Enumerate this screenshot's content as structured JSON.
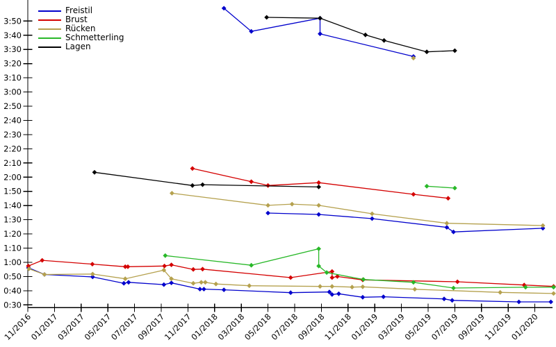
{
  "chart_data": {
    "type": "line",
    "title": "",
    "xlabel": "",
    "ylabel": "",
    "x_unit": "months since 11/2016 (fractional = day within month)",
    "y_unit": "time in seconds (displayed as m:ss)",
    "x_axis": {
      "tick_step_months": 2,
      "ticks": [
        "11/2016",
        "01/2017",
        "03/2017",
        "05/2017",
        "07/2017",
        "09/2017",
        "11/2017",
        "01/2018",
        "03/2018",
        "05/2018",
        "07/2018",
        "09/2018",
        "11/2018",
        "01/2019",
        "03/2019",
        "05/2019",
        "07/2019",
        "09/2019",
        "11/2019",
        "01/2020"
      ]
    },
    "y_axis": {
      "min_seconds": 30,
      "max_seconds": 230,
      "tick_step_seconds": 10,
      "ticks": [
        "0:30",
        "0:40",
        "0:50",
        "1:00",
        "1:10",
        "1:20",
        "1:30",
        "1:40",
        "1:50",
        "2:00",
        "2:10",
        "2:20",
        "2:30",
        "2:40",
        "2:50",
        "3:00",
        "3:10",
        "3:20",
        "3:30",
        "3:40",
        "3:50"
      ]
    },
    "legend": {
      "position": "top-left",
      "entries": [
        "Freistil",
        "Brust",
        "Rücken",
        "Schmetterling",
        "Lagen"
      ]
    },
    "grid": false,
    "marker": "diamond",
    "series": [
      {
        "name": "Freistil",
        "color": "#0000cc",
        "segments": [
          [
            [
              14.7,
              239
            ],
            [
              16.75,
              222.7
            ],
            [
              21.9,
              232
            ],
            [
              21.9,
              221
            ],
            [
              28.9,
              205
            ]
          ],
          [
            [
              18,
              94.7
            ],
            [
              21.8,
              93.7
            ],
            [
              25.8,
              90.8
            ],
            [
              31.4,
              84.6
            ],
            [
              31.9,
              81.4
            ],
            [
              38.6,
              84
            ]
          ],
          [
            [
              0.05,
              56.1
            ],
            [
              1.25,
              51.4
            ],
            [
              4.86,
              49.7
            ],
            [
              7.2,
              45.2
            ],
            [
              7.55,
              45.9
            ],
            [
              10.2,
              44.3
            ],
            [
              10.76,
              45.5
            ],
            [
              12.9,
              41.1
            ],
            [
              13.2,
              41.1
            ],
            [
              14.7,
              40.6
            ],
            [
              19.7,
              38.6
            ],
            [
              22.6,
              39.1
            ],
            [
              22.8,
              37.3
            ],
            [
              23.3,
              37.8
            ],
            [
              25.1,
              35.4
            ],
            [
              26.65,
              35.7
            ],
            [
              31.2,
              34.2
            ],
            [
              31.8,
              33.2
            ],
            [
              36.8,
              32.1
            ],
            [
              39.2,
              32.1
            ]
          ]
        ]
      },
      {
        "name": "Brust",
        "color": "#d40000",
        "segments": [
          [
            [
              12.34,
              126.1
            ],
            [
              16.75,
              116.8
            ],
            [
              18,
              114.1
            ],
            [
              21.8,
              116.1
            ],
            [
              28.9,
              107.9
            ],
            [
              31.5,
              105.1
            ]
          ],
          [
            [
              0.04,
              57.4
            ],
            [
              1.08,
              61.4
            ],
            [
              4.84,
              58.7
            ],
            [
              7.3,
              56.9
            ],
            [
              7.5,
              56.9
            ],
            [
              10.24,
              57.4
            ],
            [
              10.76,
              58.2
            ],
            [
              12.4,
              55
            ],
            [
              13.1,
              55.2
            ],
            [
              19.7,
              49.2
            ],
            [
              22.8,
              53.5
            ],
            [
              22.8,
              49.2
            ],
            [
              23.2,
              50
            ],
            [
              25.1,
              47.6
            ],
            [
              32.2,
              46.3
            ],
            [
              37.2,
              44
            ],
            [
              39.4,
              43
            ]
          ]
        ]
      },
      {
        "name": "Rücken",
        "color": "#b5a14e",
        "segments": [
          [
            [
              28.9,
              203.9
            ]
          ],
          [
            [
              10.8,
              108.7
            ],
            [
              18,
              100.1
            ],
            [
              19.8,
              101
            ],
            [
              21.8,
              100.1
            ],
            [
              25.8,
              94.2
            ],
            [
              31.4,
              87.5
            ],
            [
              38.6,
              85.9
            ]
          ],
          [
            [
              0.09,
              55.4
            ],
            [
              1.25,
              51.4
            ],
            [
              4.86,
              51.7
            ],
            [
              7.3,
              48.4
            ],
            [
              10.2,
              54.5
            ],
            [
              10.76,
              48.4
            ],
            [
              12.4,
              45.2
            ],
            [
              13.0,
              45.9
            ],
            [
              13.3,
              45.9
            ],
            [
              14.1,
              44.7
            ],
            [
              16.6,
              43.5
            ],
            [
              21.9,
              43
            ],
            [
              22.8,
              43
            ],
            [
              24.3,
              42.5
            ],
            [
              25.1,
              42.7
            ],
            [
              29.0,
              41
            ],
            [
              35.4,
              38.8
            ],
            [
              39.4,
              38
            ]
          ]
        ]
      },
      {
        "name": "Schmetterling",
        "color": "#28b828",
        "segments": [
          [
            [
              29.9,
              113.6
            ],
            [
              32,
              112.3
            ]
          ],
          [
            [
              10.3,
              64.7
            ],
            [
              16.75,
              57.9
            ],
            [
              21.8,
              69.5
            ],
            [
              21.8,
              57.4
            ],
            [
              22.4,
              52.8
            ],
            [
              25.15,
              47.9
            ],
            [
              28.9,
              45.9
            ],
            [
              31.9,
              41.9
            ],
            [
              37.3,
              42.4
            ],
            [
              39.4,
              42.4
            ]
          ]
        ]
      },
      {
        "name": "Lagen",
        "color": "#000000",
        "segments": [
          [
            [
              17.9,
              232.6
            ],
            [
              21.9,
              232
            ],
            [
              25.3,
              220.2
            ],
            [
              26.7,
              216.3
            ],
            [
              29.9,
              208.3
            ],
            [
              32,
              209.1
            ]
          ],
          [
            [
              5.0,
              123.4
            ],
            [
              12.34,
              114.1
            ],
            [
              13.1,
              114.7
            ],
            [
              21.8,
              113.1
            ]
          ]
        ]
      }
    ]
  }
}
